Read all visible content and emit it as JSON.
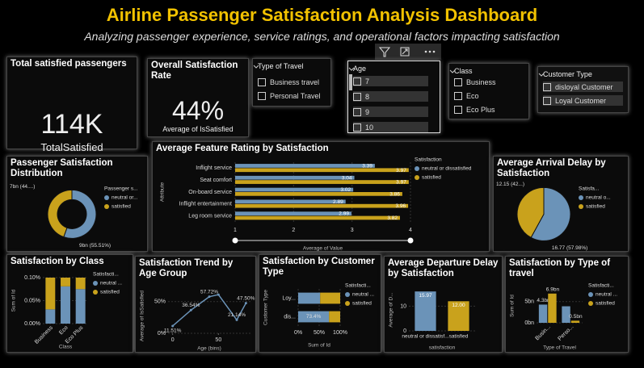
{
  "header": {
    "title": "Airline Passenger Satisfaction Analysis Dashboard",
    "subtitle": "Analyzing passenger experience, service ratings, and operational factors impacting satisfaction"
  },
  "cards": [
    {
      "title": "Total satisfied passengers",
      "value": "114K",
      "caption": "TotalSatisfied"
    },
    {
      "title": "Overall Satisfaction Rate",
      "value": "44%",
      "caption": "Average of IsSatisfied"
    }
  ],
  "slicers": [
    {
      "title": "Type of Travel",
      "items": [
        "Business travel",
        "Personal Travel"
      ]
    },
    {
      "title": "Age",
      "items": [
        "7",
        "8",
        "9",
        "10"
      ]
    },
    {
      "title": "Class",
      "items": [
        "Business",
        "Eco",
        "Eco Plus"
      ]
    },
    {
      "title": "Customer Type",
      "items": [
        "disloyal Customer",
        "Loyal Customer"
      ]
    }
  ],
  "chart_data": [
    {
      "type": "donut",
      "title": "Passenger Satisfaction Distribution",
      "legend_title": "Passenger s...",
      "categories": [
        "neutral or...",
        "satisfied"
      ],
      "values": [
        55.51,
        44.49
      ],
      "value_labels": [
        "9bn (55.51%)",
        "7bn (44....)"
      ],
      "colors": [
        "#6b93b8",
        "#c9a21c"
      ]
    },
    {
      "type": "hbar",
      "title": "Average Feature Rating by Satisfaction",
      "x_label": "Average of Value",
      "y_label": "Attribute",
      "legend_title": "Satisfaction",
      "categories": [
        "Inflight service",
        "Seat comfort",
        "On-board service",
        "Inflight entertainment",
        "Leg room service"
      ],
      "series": [
        {
          "name": "neutral or dissatisfied",
          "color": "#6b93b8",
          "values": [
            3.39,
            3.04,
            3.02,
            2.89,
            2.99
          ]
        },
        {
          "name": "satisfied",
          "color": "#c9a21c",
          "values": [
            3.97,
            3.97,
            3.86,
            3.96,
            3.82
          ]
        }
      ],
      "xlim": [
        1,
        4
      ],
      "xticks": [
        1,
        2,
        3,
        4
      ]
    },
    {
      "type": "pie",
      "title": "Average Arrival Delay by Satisfaction",
      "legend_title": "Satisfa...",
      "categories": [
        "neutral o...",
        "satisfied"
      ],
      "values": [
        16.77,
        12.15
      ],
      "value_labels": [
        "16.77 (57.98%)",
        "12.15 (42...)"
      ],
      "colors": [
        "#6b93b8",
        "#c9a21c"
      ]
    },
    {
      "type": "stacked_column",
      "title": "Satisfaction by Class",
      "x_label": "Class",
      "y_label": "Sum of Id",
      "legend_title": "Satisfacti...",
      "categories": [
        "Business",
        "Eco",
        "Eco Plus"
      ],
      "series": [
        {
          "name": "neutral ...",
          "color": "#6b93b8",
          "values": [
            0.031,
            0.081,
            0.075
          ]
        },
        {
          "name": "satisfied",
          "color": "#c9a21c",
          "values": [
            0.069,
            0.019,
            0.025
          ]
        }
      ],
      "ylim": [
        0,
        0.1
      ],
      "yticks": [
        {
          "value": 0,
          "label": "0.00%"
        },
        {
          "value": 0.05,
          "label": "0.05%"
        },
        {
          "value": 0.1,
          "label": "0.10%"
        }
      ]
    },
    {
      "type": "line",
      "title": "Satisfaction Trend by Age Group",
      "x_label": "Age (bins)",
      "y_label": "Average of IsSatisfied",
      "x": [
        0,
        20,
        40,
        50,
        70,
        80
      ],
      "values": [
        11.51,
        36.54,
        57.72,
        61,
        21.14,
        47.5
      ],
      "value_labels": [
        "11.51%",
        "36.54%",
        "57.72%",
        null,
        "21.14%",
        "47.50%"
      ],
      "color": "#6b93b8",
      "xlim": [
        -5,
        85
      ],
      "xticks": [
        0,
        50
      ],
      "ylim": [
        0,
        70
      ],
      "yticks": [
        {
          "value": 0,
          "label": "0%"
        },
        {
          "value": 50,
          "label": "50%"
        }
      ]
    },
    {
      "type": "stacked_bar",
      "title": "Satisfaction by Customer Type",
      "x_label": "Sum of Id",
      "y_label": "Customer Type",
      "legend_title": "Satisfacti...",
      "categories": [
        "Loy...",
        "dis..."
      ],
      "series": [
        {
          "name": "neutral ...",
          "color": "#6b93b8",
          "values": [
            52.3,
            73.4
          ],
          "value_labels": [
            null,
            "73.4%"
          ]
        },
        {
          "name": "satisfied",
          "color": "#c9a21c",
          "values": [
            47.7,
            26.6
          ],
          "value_labels": [
            null,
            null
          ]
        }
      ],
      "xlim": [
        0,
        100
      ],
      "xticks": [
        {
          "value": 0,
          "label": "0%"
        },
        {
          "value": 50,
          "label": "50%"
        },
        {
          "value": 100,
          "label": "100%"
        }
      ]
    },
    {
      "type": "column",
      "title": "Average Departure Delay by Satisfaction",
      "x_label": "satisfaction",
      "y_label": "Average of D...",
      "categories": [
        "neutral or dissatisf...",
        "satisfied"
      ],
      "values": [
        15.97,
        12
      ],
      "value_labels": [
        "15.97",
        "12.00"
      ],
      "colors": [
        "#6b93b8",
        "#c9a21c"
      ],
      "ylim": [
        0,
        17
      ],
      "yticks": [
        0,
        10
      ]
    },
    {
      "type": "grouped_column",
      "title": "Satisfaction by Type of travel",
      "x_label": "Type of Travel",
      "y_label": "Sum of Id",
      "legend_title": "Satisfacti...",
      "categories": [
        "Busin...",
        "Perso..."
      ],
      "series": [
        {
          "name": "neutral ...",
          "color": "#6b93b8",
          "values": [
            4.3,
            3.9
          ],
          "value_labels": [
            "4.3bn",
            null
          ]
        },
        {
          "name": "satisfied",
          "color": "#c9a21c",
          "values": [
            6.9,
            0.5
          ],
          "value_labels": [
            "6.9bn",
            "0.5bn"
          ]
        }
      ],
      "ylim": [
        0,
        8
      ],
      "yticks": [
        {
          "value": 0,
          "label": "0bn"
        },
        {
          "value": 5,
          "label": "5bn"
        }
      ]
    }
  ]
}
